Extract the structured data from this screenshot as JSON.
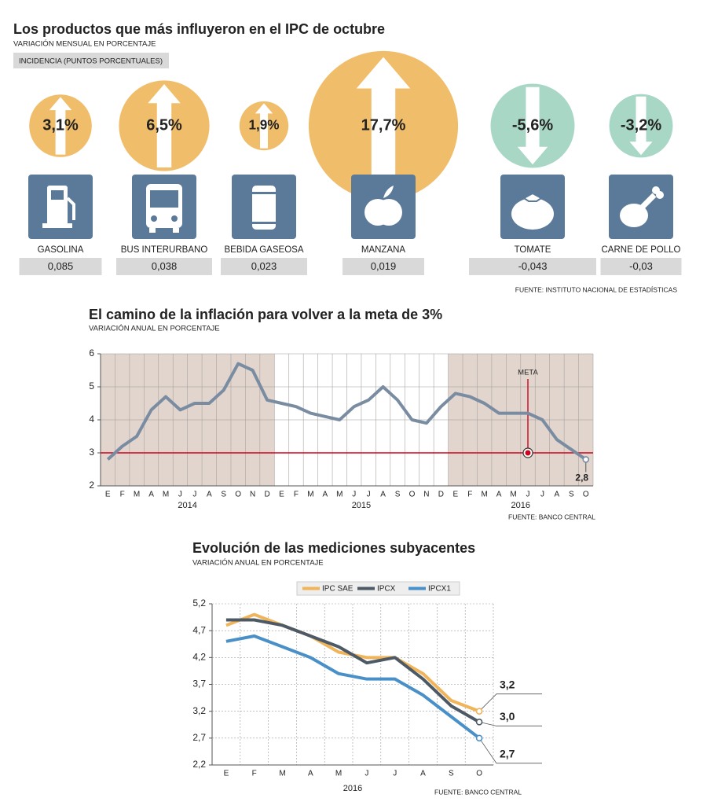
{
  "chart_data": [
    {
      "type": "bubble",
      "title": "Los productos que más influyeron en el IPC de octubre",
      "subtitle": "VARIACIÓN MENSUAL EN PORCENTAJE",
      "legend": "INCIDENCIA (PUNTOS PORCENTUALES)",
      "categories": [
        "GASOLINA",
        "BUS INTERURBANO",
        "BEBIDA GASEOSA",
        "MANZANA",
        "TOMATE",
        "CARNE DE POLLO"
      ],
      "values": [
        3.1,
        6.5,
        1.9,
        17.7,
        -5.6,
        -3.2
      ],
      "value_labels": [
        "3,1%",
        "6,5%",
        "1,9%",
        "17,7%",
        "-5,6%",
        "-3,2%"
      ],
      "incidence": [
        0.085,
        0.038,
        0.023,
        0.019,
        -0.043,
        -0.03
      ],
      "incidence_labels": [
        "0,085",
        "0,038",
        "0,023",
        "0,019",
        "-0,043",
        "-0,03"
      ],
      "colors": {
        "positive": "#f0bd6b",
        "negative": "#a9d7c6"
      },
      "source": "FUENTE: INSTITUTO NACIONAL DE ESTADÍSTICAS"
    },
    {
      "type": "line",
      "title": "El camino de la inflación para volver a la meta de 3%",
      "subtitle": "VARIACIÓN ANUAL EN PORCENTAJE",
      "categories": [
        "E",
        "F",
        "M",
        "A",
        "M",
        "J",
        "J",
        "A",
        "S",
        "O",
        "N",
        "D",
        "E",
        "F",
        "M",
        "A",
        "M",
        "J",
        "J",
        "A",
        "S",
        "O",
        "N",
        "D",
        "E",
        "F",
        "M",
        "A",
        "M",
        "J",
        "J",
        "A",
        "S",
        "O"
      ],
      "groups": [
        {
          "label": "2014",
          "count": 12
        },
        {
          "label": "2015",
          "count": 12
        },
        {
          "label": "2016",
          "count": 10
        }
      ],
      "series": [
        {
          "color": "#7a8ca1",
          "values": [
            2.8,
            3.2,
            3.5,
            4.3,
            4.7,
            4.3,
            4.5,
            4.5,
            4.9,
            5.7,
            5.5,
            4.6,
            4.5,
            4.4,
            4.2,
            4.1,
            4.0,
            4.4,
            4.6,
            5.0,
            4.6,
            4.0,
            3.9,
            4.4,
            4.8,
            4.7,
            4.5,
            4.2,
            4.2,
            4.2,
            4.0,
            3.4,
            3.1,
            2.8
          ],
          "value_labels": [
            null,
            null,
            null,
            null,
            null,
            null,
            null,
            null,
            null,
            null,
            null,
            null,
            null,
            null,
            null,
            null,
            null,
            null,
            null,
            null,
            null,
            null,
            null,
            null,
            null,
            null,
            null,
            null,
            null,
            null,
            null,
            null,
            null,
            "2,8"
          ]
        }
      ],
      "target": 3,
      "target_label": "META",
      "target_index": 29,
      "target_color": "#d0021b",
      "ylim": [
        2,
        6
      ],
      "yticks": [
        2,
        3,
        4,
        5,
        6
      ],
      "grid": true,
      "source": "FUENTE: BANCO CENTRAL"
    },
    {
      "type": "line",
      "title": "Evolución de las mediciones subyacentes",
      "subtitle": "VARIACIÓN ANUAL EN PORCENTAJE",
      "categories": [
        "E",
        "F",
        "M",
        "A",
        "M",
        "J",
        "J",
        "A",
        "S",
        "O"
      ],
      "groups": [
        {
          "label": "2016",
          "count": 10
        }
      ],
      "series": [
        {
          "name": "IPC SAE",
          "color": "#f0b45a",
          "values": [
            4.8,
            5.0,
            4.8,
            4.6,
            4.3,
            4.2,
            4.2,
            3.9,
            3.4,
            3.2
          ],
          "value_labels": [
            null,
            null,
            null,
            null,
            null,
            null,
            null,
            null,
            null,
            "3,2"
          ]
        },
        {
          "name": "IPCX",
          "color": "#4d5a66",
          "values": [
            4.9,
            4.9,
            4.8,
            4.6,
            4.4,
            4.1,
            4.2,
            3.8,
            3.3,
            3.0
          ],
          "value_labels": [
            null,
            null,
            null,
            null,
            null,
            null,
            null,
            null,
            null,
            "3,0"
          ]
        },
        {
          "name": "IPCX1",
          "color": "#4a90c8",
          "values": [
            4.5,
            4.6,
            4.4,
            4.2,
            3.9,
            3.8,
            3.8,
            3.5,
            3.1,
            2.7
          ],
          "value_labels": [
            null,
            null,
            null,
            null,
            null,
            null,
            null,
            null,
            null,
            "2,7"
          ]
        }
      ],
      "ylim": [
        2.2,
        5.2
      ],
      "yticks": [
        {
          "value": 2.2,
          "label": "2,2"
        },
        {
          "value": 2.7,
          "label": "2,7"
        },
        {
          "value": 3.2,
          "label": "3,2"
        },
        {
          "value": 3.7,
          "label": "3,7"
        },
        {
          "value": 4.2,
          "label": "4,2"
        },
        {
          "value": 4.7,
          "label": "4,7"
        },
        {
          "value": 5.2,
          "label": "5,2"
        }
      ],
      "grid": true,
      "source": "FUENTE: BANCO CENTRAL"
    }
  ]
}
